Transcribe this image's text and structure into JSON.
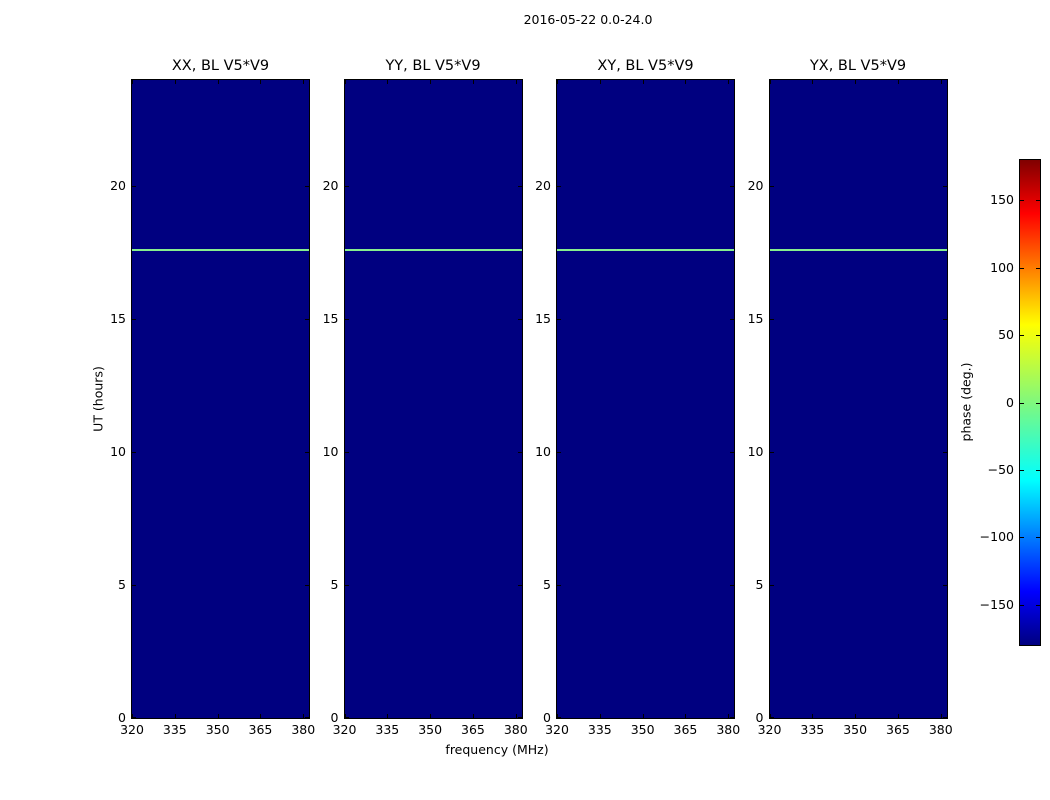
{
  "figure": {
    "title": "2016-05-22 0.0-24.0",
    "xlabel": "frequency (MHz)",
    "ylabel": "UT (hours)",
    "colorbar_label": "phase (deg.)"
  },
  "chart_data": {
    "type": "heatmap",
    "title": "2016-05-22 0.0-24.0",
    "panels": [
      {
        "title": "XX, BL V5*V9"
      },
      {
        "title": "YY, BL V5*V9"
      },
      {
        "title": "XY, BL V5*V9"
      },
      {
        "title": "YX, BL V5*V9"
      }
    ],
    "x": {
      "label": "frequency (MHz)",
      "range": [
        320,
        382
      ],
      "ticks": [
        320,
        335,
        350,
        365,
        380
      ]
    },
    "y": {
      "label": "UT (hours)",
      "range": [
        0,
        24
      ],
      "ticks": [
        0,
        5,
        10,
        15,
        20
      ]
    },
    "colorbar": {
      "label": "phase (deg.)",
      "range": [
        -180,
        180
      ],
      "ticks": [
        150,
        100,
        50,
        0,
        -50,
        -100,
        -150
      ],
      "colormap": "jet",
      "gradient_stops_top_to_bottom": [
        {
          "pos": 0.0,
          "color": "#800000"
        },
        {
          "pos": 0.11,
          "color": "#ff0000"
        },
        {
          "pos": 0.34,
          "color": "#ffff00"
        },
        {
          "pos": 0.5,
          "color": "#80f87d"
        },
        {
          "pos": 0.66,
          "color": "#00ffff"
        },
        {
          "pos": 0.89,
          "color": "#0000ff"
        },
        {
          "pos": 1.0,
          "color": "#000080"
        }
      ]
    },
    "background_phase_deg": -180,
    "features": [
      {
        "type": "hline",
        "ut_hours": 17.6,
        "phase_deg": 0,
        "color": "#86ee8e",
        "description": "thin horizontal band of ~0 deg phase at UT ~17.6 across all four panels"
      }
    ],
    "grid": false,
    "legend": false
  },
  "colors": {
    "page_bg": "#ffffff",
    "panel_bg": "#000080",
    "frame": "#000000",
    "line": "#86ee8e"
  }
}
